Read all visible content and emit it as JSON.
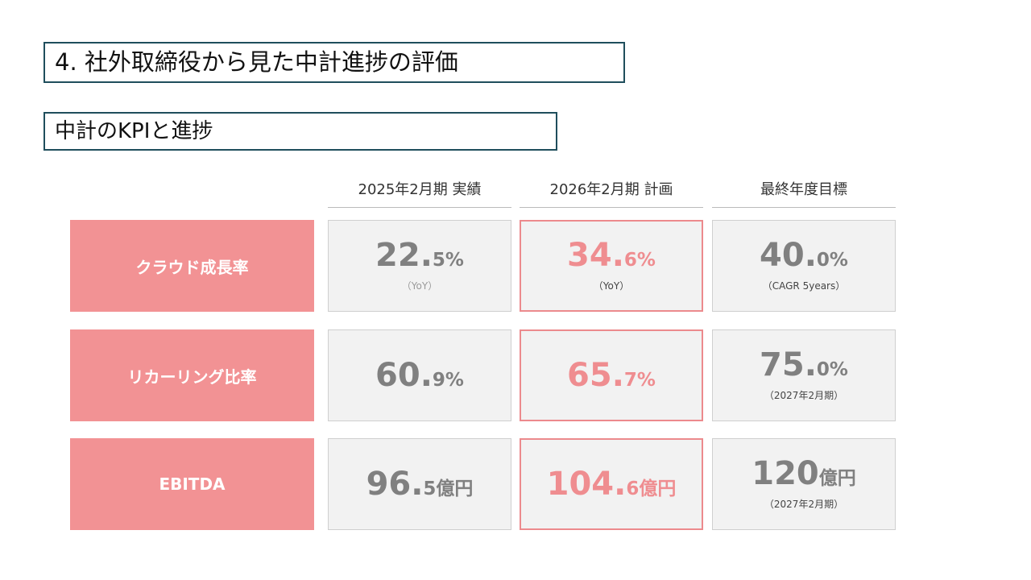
{
  "title": "4. 社外取締役から見た中計進捗の評価",
  "subtitle": "中計のKPIと進捗",
  "columns": [
    "2025年2月期 実績",
    "2026年2月期 計画",
    "最終年度目標"
  ],
  "rows": [
    {
      "label": "クラウド成長率",
      "cells": [
        {
          "int": "22.",
          "dec": "5%",
          "note": "（YoY）"
        },
        {
          "int": "34.",
          "dec": "6%",
          "note": "（YoY）"
        },
        {
          "int": "40.",
          "dec": "0%",
          "note": "（CAGR 5years）"
        }
      ]
    },
    {
      "label": "リカーリング比率",
      "cells": [
        {
          "int": "60.",
          "dec": "9%",
          "note": ""
        },
        {
          "int": "65.",
          "dec": "7%",
          "note": ""
        },
        {
          "int": "75.",
          "dec": "0%",
          "note": "（2027年2月期）"
        }
      ]
    },
    {
      "label": "EBITDA",
      "cells": [
        {
          "int": "96.",
          "dec": "5億円",
          "note": ""
        },
        {
          "int": "104.",
          "dec": "6億円",
          "note": ""
        },
        {
          "int": "120",
          "dec": "億円",
          "note": "（2027年2月期）"
        }
      ]
    }
  ]
}
